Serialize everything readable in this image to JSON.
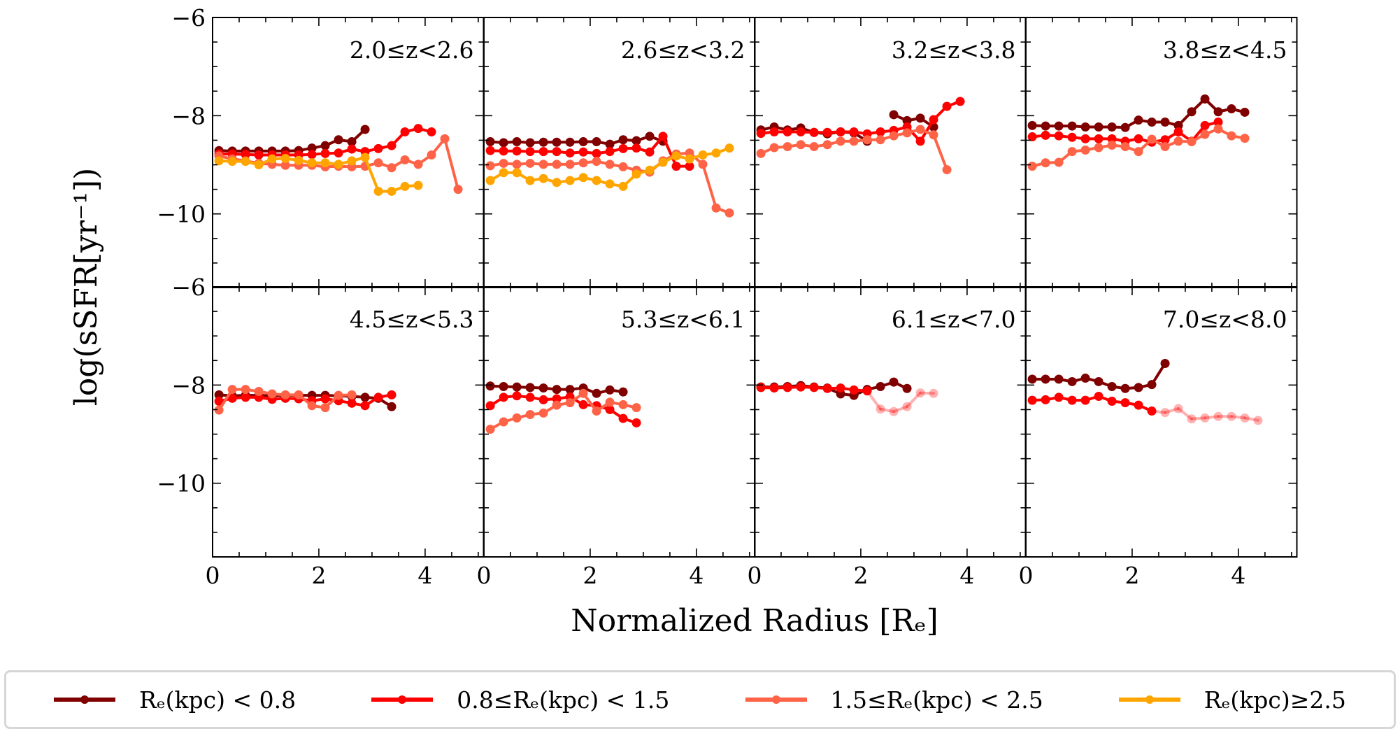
{
  "chart_data": {
    "type": "line",
    "title": "",
    "xlabel": "Normalized Radius [R_e]",
    "ylabel": "log(sSFR[yr^-1])",
    "xlim": [
      0,
      5.1
    ],
    "ylim": [
      -11.5,
      -6
    ],
    "xticks": [
      0,
      2,
      4
    ],
    "xticks_minor_step": 0.5,
    "yticks": [
      -10,
      -8,
      -6
    ],
    "yticks_minor_step": 0.5,
    "ytick_labels_top_row": [
      "−10",
      "−8",
      "−6"
    ],
    "ytick_labels_bottom_row": [
      "−10",
      "−8",
      "−6"
    ],
    "xtick_labels": [
      "0",
      "2",
      "4"
    ],
    "grid": false,
    "layout": "2 rows x 4 columns, shared axes",
    "legend_position": "bottom",
    "series_styles": [
      {
        "key": "s1",
        "name": "R_e(kpc) < 0.8",
        "color": "#800000"
      },
      {
        "key": "s2",
        "name": "0.8 ≤ R_e(kpc) < 1.5",
        "color": "#ff0000"
      },
      {
        "key": "s3",
        "name": "1.5 ≤ R_e(kpc) < 2.5",
        "color": "#ff6347"
      },
      {
        "key": "s4",
        "name": "R_e(kpc) ≥ 2.5",
        "color": "#ffa500"
      }
    ],
    "x_start": 0.12,
    "x_step": 0.25,
    "panels": [
      {
        "label": "2.0≤z<2.6",
        "series": {
          "s1": [
            -8.71,
            -8.72,
            -8.72,
            -8.72,
            -8.72,
            -8.72,
            -8.71,
            -8.66,
            -8.61,
            -8.49,
            -8.53,
            -8.28
          ],
          "s2": [
            -8.78,
            -8.78,
            -8.79,
            -8.8,
            -8.8,
            -8.8,
            -8.8,
            -8.79,
            -8.77,
            -8.76,
            -8.68,
            -8.73,
            -8.67,
            -8.61,
            -8.33,
            -8.26,
            -8.33
          ],
          "s3": [
            -8.82,
            -8.88,
            -8.92,
            -8.97,
            -8.99,
            -9.01,
            -9.01,
            -9.01,
            -9.04,
            -9.03,
            -9.04,
            -9.03,
            -8.96,
            -9.06,
            -8.9,
            -8.99,
            -8.8,
            -8.47,
            -9.5
          ],
          "s4": [
            -8.92,
            -8.93,
            -8.93,
            -9.0,
            -8.88,
            -8.87,
            -8.91,
            -8.96,
            -8.96,
            -8.99,
            -8.92,
            -8.85,
            -9.54,
            -9.54,
            -9.44,
            -9.42
          ]
        }
      },
      {
        "label": "2.6≤z<3.2",
        "series": {
          "s1": [
            -8.53,
            -8.55,
            -8.53,
            -8.55,
            -8.54,
            -8.54,
            -8.54,
            -8.53,
            -8.53,
            -8.58,
            -8.49,
            -8.51,
            -8.42,
            -8.52
          ],
          "s2": [
            -8.71,
            -8.72,
            -8.72,
            -8.73,
            -8.73,
            -8.73,
            -8.76,
            -8.74,
            -8.77,
            -8.73,
            -8.67,
            -8.66,
            -8.74,
            -8.42,
            -9.03,
            -9.03
          ],
          "s3": [
            -9.02,
            -8.97,
            -8.99,
            -8.97,
            -8.99,
            -8.99,
            -8.99,
            -8.96,
            -8.93,
            -8.99,
            -9.04,
            -9.11,
            -9.15,
            -8.92,
            -8.78,
            -8.76,
            -8.99,
            -9.88,
            -9.98
          ],
          "s4": [
            -9.32,
            -9.16,
            -9.16,
            -9.32,
            -9.28,
            -9.36,
            -9.32,
            -9.26,
            -9.32,
            -9.39,
            -9.44,
            -9.19,
            -9.11,
            -8.95,
            -8.82,
            -8.88,
            -8.8,
            -8.76,
            -8.66
          ]
        }
      },
      {
        "label": "3.2≤z<3.8",
        "series": {
          "s1": [
            -8.29,
            -8.23,
            -8.29,
            -8.25,
            -8.34,
            -8.37,
            -8.33,
            -8.35,
            -8.52,
            null,
            -7.98,
            -8.1,
            -8.05,
            -8.23
          ],
          "s2": [
            -8.36,
            -8.33,
            -8.33,
            -8.33,
            -8.34,
            -8.34,
            -8.33,
            -8.33,
            -8.37,
            -8.33,
            -8.3,
            -8.23,
            -8.52,
            -8.08,
            -7.81,
            -7.71
          ],
          "s3": [
            -8.77,
            -8.65,
            -8.63,
            -8.59,
            -8.63,
            -8.59,
            -8.52,
            -8.52,
            -8.49,
            -8.49,
            -8.41,
            -8.35,
            -8.28,
            -8.39,
            -9.1
          ],
          "s4": []
        }
      },
      {
        "label": "3.8≤z<4.5",
        "series": {
          "s1": [
            -8.2,
            -8.21,
            -8.21,
            -8.21,
            -8.23,
            -8.23,
            -8.23,
            -8.24,
            -8.09,
            -8.13,
            -8.13,
            -8.2,
            -7.92,
            -7.66,
            -7.92,
            -7.86,
            -7.93
          ],
          "s2": [
            -8.43,
            -8.4,
            -8.41,
            -8.44,
            -8.47,
            -8.47,
            -8.47,
            -8.52,
            -8.47,
            -8.54,
            -8.49,
            -8.33,
            -8.52,
            -8.2,
            -8.13
          ],
          "s3": [
            -9.03,
            -8.96,
            -8.95,
            -8.73,
            -8.7,
            -8.65,
            -8.6,
            -8.63,
            -8.73,
            -8.48,
            -8.63,
            -8.52,
            -8.53,
            -8.38,
            -8.27,
            -8.41,
            -8.46
          ],
          "s4": []
        }
      },
      {
        "label": "4.5≤z<5.3",
        "series": {
          "s1": [
            -8.2,
            -8.22,
            -8.21,
            -8.21,
            -8.22,
            -8.21,
            -8.21,
            -8.21,
            -8.21,
            -8.22,
            -8.23,
            -8.25,
            -8.27,
            -8.44
          ],
          "s2": [
            -8.33,
            -8.27,
            -8.25,
            -8.25,
            -8.29,
            -8.27,
            -8.28,
            -8.32,
            -8.28,
            -8.32,
            -8.37,
            -8.42,
            -8.25,
            -8.2
          ],
          "s3": [
            -8.51,
            -8.09,
            -8.09,
            -8.13,
            -8.18,
            -8.2,
            -8.2,
            -8.42,
            -8.46,
            -8.21,
            -8.2
          ],
          "s4": []
        }
      },
      {
        "label": "5.3≤z<6.1",
        "series": {
          "s1": [
            -8.02,
            -8.03,
            -8.04,
            -8.05,
            -8.06,
            -8.09,
            -8.09,
            -8.06,
            -8.17,
            -8.1,
            -8.14
          ],
          "s2": [
            -8.42,
            -8.25,
            -8.22,
            -8.25,
            -8.3,
            -8.28,
            -8.24,
            -8.4,
            -8.42,
            -8.5,
            -8.68,
            -8.77
          ],
          "s3": [
            -8.9,
            -8.75,
            -8.67,
            -8.6,
            -8.57,
            -8.41,
            -8.36,
            -8.17,
            -8.53,
            -8.35,
            -8.4,
            -8.46
          ],
          "s4": []
        }
      },
      {
        "label": "6.1≤z<7.0",
        "series": {
          "s1": [
            -8.04,
            -8.04,
            -8.03,
            -8.01,
            -8.04,
            -8.06,
            -8.18,
            -8.21,
            -8.09,
            -8.03,
            -7.94,
            -8.07
          ],
          "s2": [
            -8.05,
            -8.06,
            -8.05,
            -8.04,
            -8.05,
            -8.07,
            -8.06,
            -8.1,
            -8.12,
            -8.49,
            -8.54,
            -8.44,
            -8.16,
            -8.17
          ],
          "s3": [],
          "s4": []
        },
        "faded_from": {
          "s2": 8
        }
      },
      {
        "label": "7.0≤z<8.0",
        "series": {
          "s1": [
            -7.88,
            -7.88,
            -7.88,
            -7.93,
            -7.86,
            -7.93,
            -8.03,
            -8.07,
            -8.05,
            -7.99,
            -7.56
          ],
          "s2": [
            -8.31,
            -8.3,
            -8.25,
            -8.31,
            -8.31,
            -8.23,
            -8.33,
            -8.36,
            -8.41,
            -8.53,
            -8.56,
            -8.48,
            -8.69,
            -8.67,
            -8.64,
            -8.64,
            -8.67,
            -8.72
          ],
          "s3": [],
          "s4": []
        },
        "faded_from": {
          "s2": 9
        }
      }
    ]
  },
  "legend": {
    "items": [
      {
        "label": "Rₑ(kpc) < 0.8",
        "color": "#800000"
      },
      {
        "label": "0.8≤Rₑ(kpc) < 1.5",
        "color": "#ff0000"
      },
      {
        "label": "1.5≤Rₑ(kpc) < 2.5",
        "color": "#ff6347"
      },
      {
        "label": "Rₑ(kpc)≥2.5",
        "color": "#ffa500"
      }
    ]
  },
  "axes": {
    "xlabel": "Normalized Radius [Rₑ]",
    "ylabel": "log(sSFR[yr⁻¹])"
  }
}
